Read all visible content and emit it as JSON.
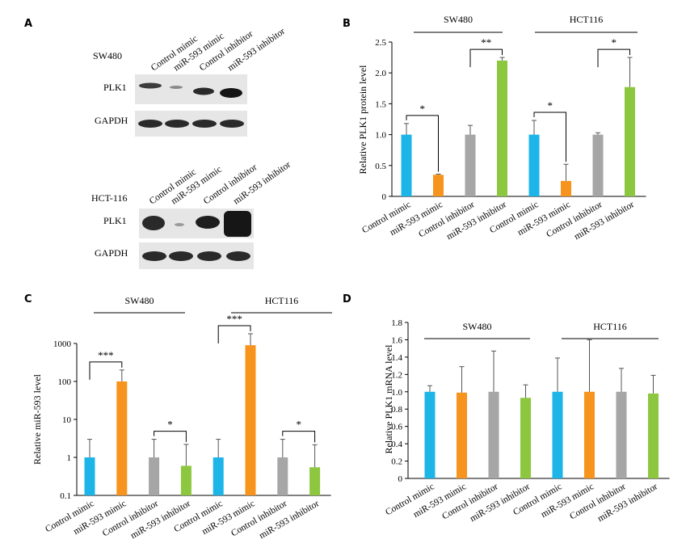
{
  "panels": {
    "A": {
      "letter": "A",
      "blot1": {
        "cell_line": "SW480",
        "lanes": [
          "Control mimic",
          "miR-593 mimic",
          "Control inhibitor",
          "miR-593 inhibitor"
        ],
        "rows": [
          "PLK1",
          "GAPDH"
        ]
      },
      "blot2": {
        "cell_line": "HCT-116",
        "lanes": [
          "Control mimic",
          "miR-593 mimic",
          "Control inhibitor",
          "miR-593 inhibitor"
        ],
        "rows": [
          "PLK1",
          "GAPDH"
        ]
      }
    },
    "B": {
      "letter": "B"
    },
    "C": {
      "letter": "C"
    },
    "D": {
      "letter": "D"
    }
  },
  "colors": {
    "control_mimic": "#1db4e8",
    "mir593_mimic": "#f7941d",
    "control_inhibitor": "#a6a6a6",
    "mir593_inhibitor": "#8dc63f",
    "axis": "#000000",
    "band": "#1e1e1e"
  },
  "chart_data": [
    {
      "panel": "B",
      "type": "bar",
      "ylabel": "Relative PLK1 protein level",
      "ylim": [
        0,
        2.5
      ],
      "yticks": [
        "0",
        "0.5",
        "1.0",
        "1.5",
        "2.0",
        "2.5"
      ],
      "scale": "linear",
      "categories": [
        "Control mimic",
        "miR-593 mimic",
        "Control inhibitor",
        "miR-593 inhibitor",
        "Control mimic",
        "miR-593 mimic",
        "Control inhibitor",
        "miR-593 inhibitor"
      ],
      "values": [
        1.0,
        0.35,
        1.0,
        2.2,
        1.0,
        0.25,
        1.0,
        1.77
      ],
      "errors": [
        0.18,
        0.01,
        0.15,
        0.05,
        0.23,
        0.27,
        0.03,
        0.48
      ],
      "group_labels": [
        "SW480",
        "HCT116"
      ],
      "significance": [
        {
          "from": 0,
          "to": 1,
          "label": "*"
        },
        {
          "from": 2,
          "to": 3,
          "label": "**"
        },
        {
          "from": 4,
          "to": 5,
          "label": "*"
        },
        {
          "from": 6,
          "to": 7,
          "label": "*"
        }
      ]
    },
    {
      "panel": "C",
      "type": "bar",
      "ylabel": "Relative miR-593 level",
      "ylim": [
        0.1,
        1000
      ],
      "yticks": [
        "0.1",
        "1",
        "10",
        "100",
        "1000"
      ],
      "scale": "log",
      "categories": [
        "Control mimic",
        "miR-593 mimic",
        "Control inhibitor",
        "miR-593 inhibitor",
        "Control mimic",
        "miR-593 mimic",
        "Control inhibitor",
        "miR-593 inhibitor"
      ],
      "values": [
        1.0,
        100,
        1.0,
        0.6,
        1.0,
        900,
        1.0,
        0.55
      ],
      "errors_hi": [
        2.0,
        100,
        2.0,
        1.6,
        2.0,
        900,
        2.0,
        1.6
      ],
      "group_labels": [
        "SW480",
        "HCT116"
      ],
      "significance": [
        {
          "from": 0,
          "to": 1,
          "label": "***"
        },
        {
          "from": 2,
          "to": 3,
          "label": "*"
        },
        {
          "from": 4,
          "to": 5,
          "label": "***"
        },
        {
          "from": 6,
          "to": 7,
          "label": "*"
        }
      ]
    },
    {
      "panel": "D",
      "type": "bar",
      "ylabel": "Relative PLK1 mRNA level",
      "ylim": [
        0,
        1.8
      ],
      "yticks": [
        "0",
        "0.2",
        "0.4",
        "0.6",
        "0.8",
        "1.0",
        "1.2",
        "1.4",
        "1.6",
        "1.8"
      ],
      "scale": "linear",
      "categories": [
        "Control mimic",
        "miR-593 mimic",
        "Control inhibitor",
        "miR-593 inhibitor",
        "Control mimic",
        "miR-593 mimic",
        "Control inhibitor",
        "miR-593 inhibitor"
      ],
      "values": [
        1.0,
        0.99,
        1.0,
        0.93,
        1.0,
        1.0,
        1.0,
        0.98
      ],
      "errors": [
        0.07,
        0.3,
        0.47,
        0.15,
        0.39,
        0.6,
        0.27,
        0.21
      ],
      "group_labels": [
        "SW480",
        "HCT116"
      ],
      "significance": []
    }
  ]
}
